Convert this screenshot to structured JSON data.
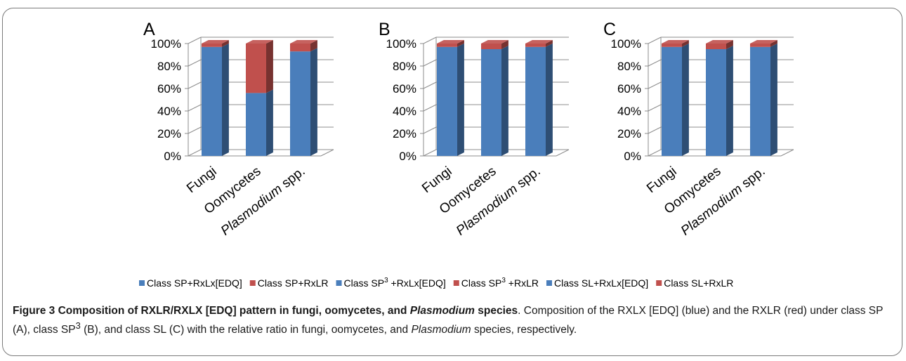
{
  "chart_data": [
    {
      "type": "bar",
      "stacked": true,
      "three_d": true,
      "panel_label": "A",
      "categories": [
        "Fungi",
        "Oomycetes",
        "Plasmodium spp."
      ],
      "series": [
        {
          "name": "Class SP+RxLx[EDQ]",
          "color": "#4a7ebb",
          "values": [
            97,
            56,
            93
          ]
        },
        {
          "name": "Class SP+RxLR",
          "color": "#c0504d",
          "values": [
            3,
            44,
            7
          ]
        }
      ],
      "ylim": [
        0,
        100
      ],
      "yticks": [
        "0%",
        "20%",
        "40%",
        "60%",
        "80%",
        "100%"
      ]
    },
    {
      "type": "bar",
      "stacked": true,
      "three_d": true,
      "panel_label": "B",
      "categories": [
        "Fungi",
        "Oomycetes",
        "Plasmodium spp."
      ],
      "series": [
        {
          "name": "Class SP3 +RxLx[EDQ]",
          "color": "#4a7ebb",
          "values": [
            97,
            95,
            97
          ]
        },
        {
          "name": "Class SP3 +RxLR",
          "color": "#c0504d",
          "values": [
            3,
            5,
            3
          ]
        }
      ],
      "ylim": [
        0,
        100
      ],
      "yticks": [
        "0%",
        "20%",
        "40%",
        "60%",
        "80%",
        "100%"
      ]
    },
    {
      "type": "bar",
      "stacked": true,
      "three_d": true,
      "panel_label": "C",
      "categories": [
        "Fungi",
        "Oomycetes",
        "Plasmodium spp."
      ],
      "series": [
        {
          "name": "Class SL+RxLx[EDQ]",
          "color": "#4a7ebb",
          "values": [
            97,
            95,
            97
          ]
        },
        {
          "name": "Class SL+RxLR",
          "color": "#c0504d",
          "values": [
            3,
            5,
            3
          ]
        }
      ],
      "ylim": [
        0,
        100
      ],
      "yticks": [
        "0%",
        "20%",
        "40%",
        "60%",
        "80%",
        "100%"
      ]
    }
  ],
  "legend": [
    {
      "pre": "Class SP+RxLx[EDQ]",
      "sup": "",
      "post": "",
      "color": "#4a7ebb"
    },
    {
      "pre": "Class SP+RxLR",
      "sup": "",
      "post": "",
      "color": "#c0504d"
    },
    {
      "pre": "Class SP",
      "sup": "3",
      "post": " +RxLx[EDQ]",
      "color": "#4a7ebb"
    },
    {
      "pre": "Class SP",
      "sup": "3",
      "post": " +RxLR",
      "color": "#c0504d"
    },
    {
      "pre": "Class SL+RxLx[EDQ]",
      "sup": "",
      "post": "",
      "color": "#4a7ebb"
    },
    {
      "pre": "Class SL+RxLR",
      "sup": "",
      "post": "",
      "color": "#c0504d"
    }
  ],
  "caption": {
    "title_pre": "Figure 3 Composition of RXLR/RXLX [EDQ] pattern in fungi, oomycetes, and ",
    "title_italic": "Plasmodium",
    "title_post": " species",
    "text_1": ". Composition of the RXLX [EDQ] (blue) and the RXLR (red) under class SP (A), class SP",
    "text_sup": "3",
    "text_2": " (B), and class SL (C) with the relative ratio in fungi, oomycetes, and ",
    "text_italic": "Plasmodium",
    "text_3": " species, respectively."
  }
}
